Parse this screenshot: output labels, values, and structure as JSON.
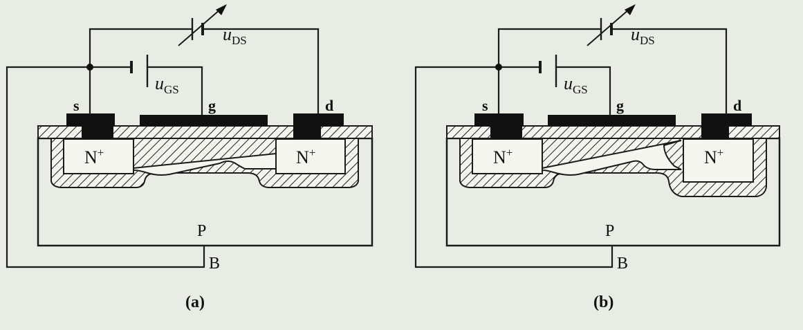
{
  "diagrams": [
    {
      "caption": "(a)",
      "labels": {
        "source": "s",
        "gate": "g",
        "drain": "d",
        "substrate": "P",
        "body": "B",
        "n_plus_left": "N",
        "n_plus_right": "N",
        "n_sup": "+",
        "uds_main": "u",
        "uds_sub": "DS",
        "ugs_main": "u",
        "ugs_sub": "GS"
      }
    },
    {
      "caption": "(b)",
      "labels": {
        "source": "s",
        "gate": "g",
        "drain": "d",
        "substrate": "P",
        "body": "B",
        "n_plus_left": "N",
        "n_plus_right": "N",
        "n_sup": "+",
        "uds_main": "u",
        "uds_sub": "DS",
        "ugs_main": "u",
        "ugs_sub": "GS"
      }
    }
  ],
  "colors": {
    "background": "#e9ece4",
    "ink": "#1a1a1a",
    "region_fill": "#f4f5ef"
  }
}
